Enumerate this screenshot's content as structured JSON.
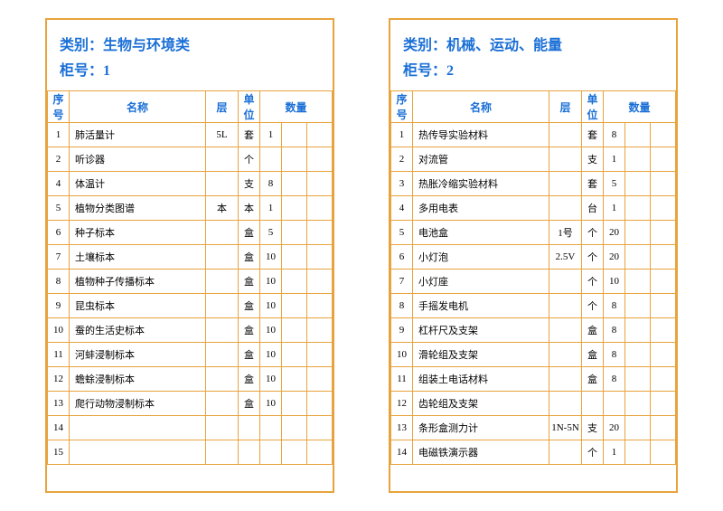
{
  "labels": {
    "category_prefix": "类别：",
    "cabinet_prefix": "柜号：",
    "seq": "序号",
    "name": "名称",
    "layer": "层",
    "unit": "单位",
    "qty": "数量"
  },
  "colors": {
    "border": "#e8a33d",
    "header_text": "#1a6fd6",
    "background": "#ffffff"
  },
  "tables": [
    {
      "category": "生物与环境类",
      "cabinet": "1",
      "rows": [
        {
          "seq": "1",
          "name": "肺活量计",
          "layer": "5L",
          "unit": "套",
          "qty": "1"
        },
        {
          "seq": "2",
          "name": "听诊器",
          "layer": "",
          "unit": "个",
          "qty": ""
        },
        {
          "seq": "4",
          "name": "体温计",
          "layer": "",
          "unit": "支",
          "qty": "8"
        },
        {
          "seq": "5",
          "name": "植物分类图谱",
          "layer": "本",
          "unit": "本",
          "qty": "1"
        },
        {
          "seq": "6",
          "name": "种子标本",
          "layer": "",
          "unit": "盒",
          "qty": "5"
        },
        {
          "seq": "7",
          "name": "土壤标本",
          "layer": "",
          "unit": "盒",
          "qty": "10"
        },
        {
          "seq": "8",
          "name": "植物种子传播标本",
          "layer": "",
          "unit": "盒",
          "qty": "10"
        },
        {
          "seq": "9",
          "name": "昆虫标本",
          "layer": "",
          "unit": "盒",
          "qty": "10"
        },
        {
          "seq": "10",
          "name": "蚕的生活史标本",
          "layer": "",
          "unit": "盒",
          "qty": "10"
        },
        {
          "seq": "11",
          "name": "河蚌浸制标本",
          "layer": "",
          "unit": "盒",
          "qty": "10"
        },
        {
          "seq": "12",
          "name": "蟾蜍浸制标本",
          "layer": "",
          "unit": "盒",
          "qty": "10"
        },
        {
          "seq": "13",
          "name": "爬行动物浸制标本",
          "layer": "",
          "unit": "盒",
          "qty": "10"
        },
        {
          "seq": "14",
          "name": "",
          "layer": "",
          "unit": "",
          "qty": ""
        },
        {
          "seq": "15",
          "name": "",
          "layer": "",
          "unit": "",
          "qty": ""
        }
      ]
    },
    {
      "category": "机械、运动、能量",
      "cabinet": "2",
      "rows": [
        {
          "seq": "1",
          "name": "热传导实验材料",
          "layer": "",
          "unit": "套",
          "qty": "8"
        },
        {
          "seq": "2",
          "name": "对流管",
          "layer": "",
          "unit": "支",
          "qty": "1"
        },
        {
          "seq": "3",
          "name": "热胀冷缩实验材料",
          "layer": "",
          "unit": "套",
          "qty": "5"
        },
        {
          "seq": "4",
          "name": "多用电表",
          "layer": "",
          "unit": "台",
          "qty": "1"
        },
        {
          "seq": "5",
          "name": "电池盒",
          "layer": "1号",
          "unit": "个",
          "qty": "20"
        },
        {
          "seq": "6",
          "name": "小灯泡",
          "layer": "2.5V",
          "unit": "个",
          "qty": "20"
        },
        {
          "seq": "7",
          "name": "小灯座",
          "layer": "",
          "unit": "个",
          "qty": "10"
        },
        {
          "seq": "8",
          "name": "手摇发电机",
          "layer": "",
          "unit": "个",
          "qty": "8"
        },
        {
          "seq": "9",
          "name": "杠杆尺及支架",
          "layer": "",
          "unit": "盒",
          "qty": "8"
        },
        {
          "seq": "10",
          "name": "滑轮组及支架",
          "layer": "",
          "unit": "盒",
          "qty": "8"
        },
        {
          "seq": "11",
          "name": "组装土电话材料",
          "layer": "",
          "unit": "盒",
          "qty": "8"
        },
        {
          "seq": "12",
          "name": "齿轮组及支架",
          "layer": "",
          "unit": "",
          "qty": ""
        },
        {
          "seq": "13",
          "name": "条形盒测力计",
          "layer": "1N-5N",
          "unit": "支",
          "qty": "20"
        },
        {
          "seq": "14",
          "name": "电磁铁演示器",
          "layer": "",
          "unit": "个",
          "qty": "1"
        }
      ]
    }
  ]
}
